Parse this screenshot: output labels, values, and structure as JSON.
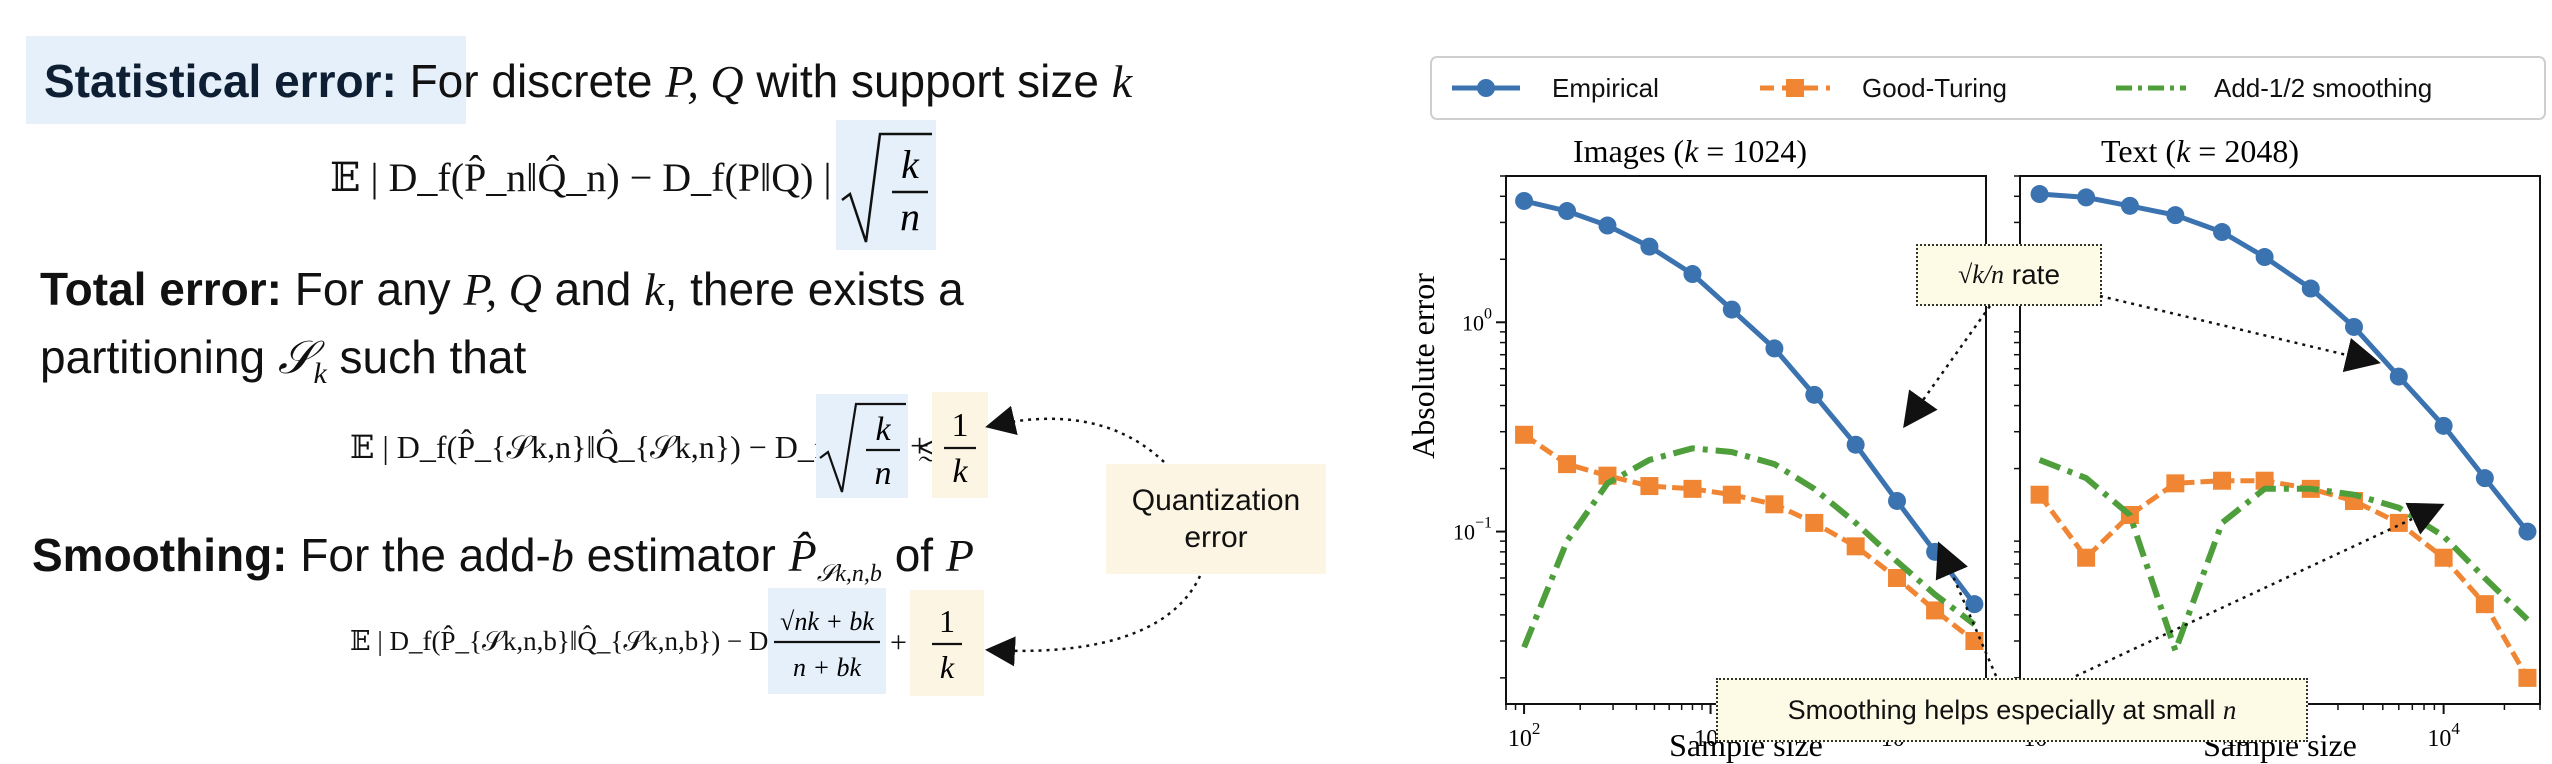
{
  "left": {
    "statistical": {
      "heading": "Statistical error:",
      "text1": "For discrete",
      "math1": "P, Q",
      "text2": "with support size",
      "math2": "k",
      "lhs": "𝔼 | D_f(P̂_n‖Q̂_n) − D_f(P‖Q) | ≲",
      "rhs_num": "k",
      "rhs_den": "n"
    },
    "total": {
      "heading": "Total error:",
      "text1": "For any",
      "math1": "P, Q",
      "text2": "and",
      "math2": "k",
      "text3": ", there exists a",
      "line2a": "partitioning",
      "line2math": "𝒮",
      "line2sub": "k",
      "line2b": "such that",
      "lhs": "𝔼 | D_f(P̂_{𝒮k,n}‖Q̂_{𝒮k,n}) − D_f(P‖Q) | ≲",
      "term1_num": "k",
      "term1_den": "n",
      "plus": "+",
      "term2_num": "1",
      "term2_den": "k"
    },
    "quantization": {
      "label": "Quantization error"
    },
    "smoothing": {
      "heading": "Smoothing:",
      "text1": "For the add-",
      "math1": "b",
      "text2": "estimator",
      "estimator": "P̂",
      "estimator_sub": "𝒮k,n,b",
      "text3": "of",
      "math3": "P",
      "lhs": "𝔼 | D_f(P̂_{𝒮k,n,b}‖Q̂_{𝒮k,n,b}) − D_f(P‖Q) | ≲",
      "term1_num": "√nk + bk",
      "term1_den": "n + bk",
      "plus": "+",
      "term2_num": "1",
      "term2_den": "k"
    }
  },
  "chart_data": [
    {
      "type": "line",
      "title": "Images (k = 1024)",
      "xlabel": "Sample size",
      "ylabel": "Absolute error",
      "xscale": "log",
      "yscale": "log",
      "xlim": [
        80,
        30000
      ],
      "ylim": [
        0.015,
        5
      ],
      "xticks": [
        "10^2",
        "10^3",
        "10^4"
      ],
      "yticks": [
        "10^0",
        "10^-1"
      ],
      "grid": false,
      "series": [
        {
          "name": "Empirical",
          "color": "#3b73b0",
          "x": [
            100,
            170,
            280,
            470,
            800,
            1300,
            2200,
            3600,
            6000,
            10000,
            16000,
            26000
          ],
          "y": [
            3.8,
            3.4,
            2.9,
            2.3,
            1.7,
            1.15,
            0.75,
            0.45,
            0.26,
            0.14,
            0.08,
            0.045
          ]
        },
        {
          "name": "Good-Turing",
          "color": "#f08633",
          "x": [
            100,
            170,
            280,
            470,
            800,
            1300,
            2200,
            3600,
            6000,
            10000,
            16000,
            26000
          ],
          "y": [
            0.29,
            0.21,
            0.185,
            0.165,
            0.16,
            0.15,
            0.135,
            0.11,
            0.085,
            0.06,
            0.042,
            0.03
          ]
        },
        {
          "name": "Add-1/2 smoothing",
          "color": "#4f9e3c",
          "x": [
            100,
            170,
            280,
            470,
            800,
            1300,
            2200,
            3600,
            6000,
            10000,
            16000,
            26000
          ],
          "y": [
            0.028,
            0.09,
            0.17,
            0.22,
            0.25,
            0.24,
            0.21,
            0.16,
            0.11,
            0.072,
            0.05,
            0.036
          ]
        }
      ]
    },
    {
      "type": "line",
      "title": "Text (k = 2048)",
      "xlabel": "Sample size",
      "xscale": "log",
      "yscale": "log",
      "xlim": [
        80,
        30000
      ],
      "ylim": [
        0.015,
        5
      ],
      "xticks": [
        "10^2",
        "10^3",
        "10^4"
      ],
      "grid": false,
      "series": [
        {
          "name": "Empirical",
          "color": "#3b73b0",
          "x": [
            100,
            170,
            280,
            470,
            800,
            1300,
            2200,
            3600,
            6000,
            10000,
            16000,
            26000
          ],
          "y": [
            4.1,
            3.95,
            3.6,
            3.25,
            2.7,
            2.05,
            1.45,
            0.95,
            0.55,
            0.32,
            0.18,
            0.1
          ]
        },
        {
          "name": "Good-Turing",
          "color": "#f08633",
          "x": [
            100,
            170,
            280,
            470,
            800,
            1300,
            2200,
            3600,
            6000,
            10000,
            16000,
            26000
          ],
          "y": [
            0.15,
            0.075,
            0.12,
            0.17,
            0.175,
            0.175,
            0.16,
            0.14,
            0.11,
            0.075,
            0.045,
            0.02
          ]
        },
        {
          "name": "Add-1/2 smoothing",
          "color": "#4f9e3c",
          "x": [
            100,
            170,
            280,
            470,
            800,
            1300,
            2200,
            3600,
            6000,
            10000,
            16000,
            26000
          ],
          "y": [
            0.22,
            0.18,
            0.12,
            0.027,
            0.11,
            0.16,
            0.16,
            0.15,
            0.13,
            0.095,
            0.06,
            0.038
          ]
        }
      ]
    }
  ],
  "plot": {
    "legend": [
      "Empirical",
      "Good-Turing",
      "Add-1/2 smoothing"
    ],
    "titles": [
      "Images (",
      "Text ("
    ],
    "callout_rate_text": "rate",
    "callout_rate_math": "√k/n",
    "callout_smooth_text": "Smoothing helps especially at small",
    "callout_smooth_math": "n"
  },
  "colors": {
    "blue": "#3b73b0",
    "orange": "#f08633",
    "green": "#4f9e3c",
    "hl_blue": "#e6f0fb",
    "hl_yellow": "#fcf5e3"
  }
}
